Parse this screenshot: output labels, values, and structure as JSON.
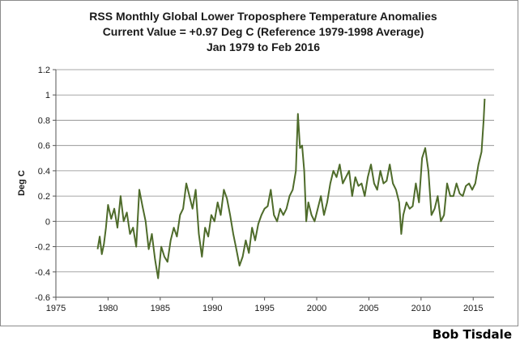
{
  "chart_data": {
    "type": "line",
    "title": [
      "RSS Monthly Global Lower Troposphere Temperature Anomalies",
      "Current Value = +0.97 Deg C (Reference 1979-1998 Average)",
      "Jan 1979 to Feb 2016"
    ],
    "xlabel": "",
    "ylabel": "Deg C",
    "xlim": [
      1975,
      2017
    ],
    "ylim": [
      -0.6,
      1.2
    ],
    "x_ticks": [
      1975,
      1980,
      1985,
      1990,
      1995,
      2000,
      2005,
      2010,
      2015
    ],
    "y_ticks": [
      -0.6,
      -0.4,
      -0.2,
      0,
      0.2,
      0.4,
      0.6,
      0.8,
      1,
      1.2
    ],
    "y_tick_labels": [
      "-0.6",
      "-0.4",
      "-0.2",
      "0",
      "0.2",
      "0.4",
      "0.6",
      "0.8",
      "1",
      "1.2"
    ],
    "grid": "horizontal",
    "legend": "none",
    "series_color": "#4e6b2a",
    "series": [
      {
        "name": "",
        "x": [
          1979.0,
          1979.2,
          1979.4,
          1979.6,
          1979.8,
          1980.0,
          1980.3,
          1980.6,
          1980.9,
          1981.2,
          1981.5,
          1981.8,
          1982.1,
          1982.4,
          1982.7,
          1983.0,
          1983.3,
          1983.6,
          1983.9,
          1984.2,
          1984.5,
          1984.8,
          1985.1,
          1985.4,
          1985.7,
          1986.0,
          1986.3,
          1986.6,
          1986.9,
          1987.2,
          1987.5,
          1987.8,
          1988.1,
          1988.4,
          1988.7,
          1989.0,
          1989.3,
          1989.6,
          1989.9,
          1990.2,
          1990.5,
          1990.8,
          1991.1,
          1991.4,
          1991.7,
          1992.0,
          1992.3,
          1992.6,
          1992.9,
          1993.2,
          1993.5,
          1993.8,
          1994.1,
          1994.4,
          1994.7,
          1995.0,
          1995.3,
          1995.6,
          1995.9,
          1996.2,
          1996.5,
          1996.8,
          1997.1,
          1997.4,
          1997.7,
          1998.0,
          1998.2,
          1998.4,
          1998.6,
          1998.8,
          1999.0,
          1999.2,
          1999.5,
          1999.8,
          2000.1,
          2000.4,
          2000.7,
          2001.0,
          2001.3,
          2001.6,
          2001.9,
          2002.2,
          2002.5,
          2002.8,
          2003.1,
          2003.4,
          2003.7,
          2004.0,
          2004.3,
          2004.6,
          2004.9,
          2005.2,
          2005.5,
          2005.8,
          2006.1,
          2006.4,
          2006.7,
          2007.0,
          2007.3,
          2007.6,
          2007.9,
          2008.1,
          2008.3,
          2008.6,
          2008.9,
          2009.2,
          2009.5,
          2009.8,
          2010.1,
          2010.4,
          2010.7,
          2011.0,
          2011.3,
          2011.6,
          2011.9,
          2012.2,
          2012.5,
          2012.8,
          2013.1,
          2013.4,
          2013.7,
          2014.0,
          2014.3,
          2014.6,
          2014.9,
          2015.2,
          2015.5,
          2015.8,
          2016.0,
          2016.1
        ],
        "y": [
          -0.22,
          -0.12,
          -0.26,
          -0.18,
          -0.05,
          0.13,
          0.02,
          0.1,
          -0.05,
          0.2,
          0.0,
          0.07,
          -0.1,
          -0.05,
          -0.2,
          0.25,
          0.12,
          0.0,
          -0.22,
          -0.1,
          -0.3,
          -0.45,
          -0.2,
          -0.28,
          -0.32,
          -0.15,
          -0.05,
          -0.12,
          0.05,
          0.1,
          0.3,
          0.2,
          0.1,
          0.25,
          -0.1,
          -0.28,
          -0.05,
          -0.12,
          0.05,
          0.0,
          0.15,
          0.05,
          0.25,
          0.18,
          0.05,
          -0.1,
          -0.22,
          -0.35,
          -0.28,
          -0.15,
          -0.25,
          -0.05,
          -0.15,
          -0.02,
          0.05,
          0.1,
          0.12,
          0.25,
          0.05,
          0.0,
          0.1,
          0.05,
          0.1,
          0.2,
          0.25,
          0.4,
          0.85,
          0.58,
          0.6,
          0.4,
          0.0,
          0.15,
          0.05,
          0.0,
          0.1,
          0.2,
          0.05,
          0.15,
          0.3,
          0.4,
          0.35,
          0.45,
          0.3,
          0.35,
          0.4,
          0.2,
          0.35,
          0.28,
          0.3,
          0.2,
          0.35,
          0.45,
          0.3,
          0.25,
          0.4,
          0.3,
          0.32,
          0.45,
          0.3,
          0.25,
          0.15,
          -0.1,
          0.05,
          0.15,
          0.1,
          0.12,
          0.3,
          0.15,
          0.5,
          0.58,
          0.4,
          0.05,
          0.1,
          0.2,
          0.0,
          0.05,
          0.3,
          0.2,
          0.2,
          0.3,
          0.22,
          0.2,
          0.28,
          0.3,
          0.25,
          0.3,
          0.45,
          0.55,
          0.8,
          0.97
        ]
      }
    ]
  },
  "credit": "Bob Tisdale"
}
